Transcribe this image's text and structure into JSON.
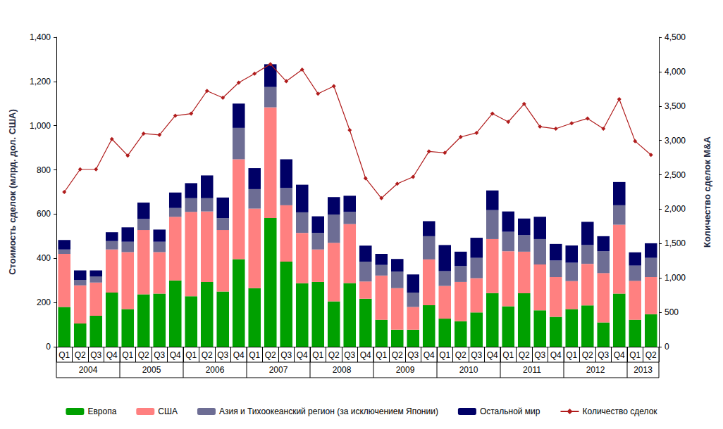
{
  "chart_data": {
    "type": "bar",
    "stacked": true,
    "grid": false,
    "legend": "bottom",
    "y_label": "Стоимость сделок (млрд. дол. США)",
    "y2_label": "Количество сделок M&A",
    "categories": [
      "Q1",
      "Q2",
      "Q3",
      "Q4",
      "Q1",
      "Q2",
      "Q3",
      "Q4",
      "Q1",
      "Q2",
      "Q3",
      "Q4",
      "Q1",
      "Q2",
      "Q3",
      "Q4",
      "Q1",
      "Q2",
      "Q3",
      "Q4",
      "Q1",
      "Q2",
      "Q3",
      "Q4",
      "Q1",
      "Q2",
      "Q3",
      "Q4",
      "Q1",
      "Q2",
      "Q3",
      "Q4",
      "Q1",
      "Q2",
      "Q3",
      "Q4",
      "Q1",
      "Q2"
    ],
    "years": [
      "2004",
      "2004",
      "2004",
      "2004",
      "2005",
      "2005",
      "2005",
      "2005",
      "2006",
      "2006",
      "2006",
      "2006",
      "2007",
      "2007",
      "2007",
      "2007",
      "2008",
      "2008",
      "2008",
      "2008",
      "2009",
      "2009",
      "2009",
      "2009",
      "2010",
      "2010",
      "2010",
      "2010",
      "2011",
      "2011",
      "2011",
      "2011",
      "2012",
      "2012",
      "2012",
      "2012",
      "2013",
      "2013"
    ],
    "ylim": [
      0,
      1400
    ],
    "yticks": [
      0,
      200,
      400,
      600,
      800,
      {
        "value": 1000,
        "label": "1,000"
      },
      {
        "value": 1200,
        "label": "1,200"
      },
      {
        "value": 1400,
        "label": "1,400"
      }
    ],
    "y2lim": [
      0,
      4500
    ],
    "y2ticks": [
      0,
      500,
      {
        "value": 1000,
        "label": "1,000"
      },
      {
        "value": 1500,
        "label": "1,500"
      },
      {
        "value": 2000,
        "label": "2,000"
      },
      {
        "value": 2500,
        "label": "2,500"
      },
      {
        "value": 3000,
        "label": "3,000"
      },
      {
        "value": 3500,
        "label": "3,500"
      },
      {
        "value": 4000,
        "label": "4,000"
      },
      {
        "value": 4500,
        "label": "4,500"
      }
    ],
    "series": [
      {
        "name": "Европа",
        "type": "bar",
        "color": "#00a000",
        "values": [
          180,
          105,
          140,
          245,
          170,
          237,
          240,
          300,
          228,
          293,
          250,
          396,
          265,
          582,
          385,
          287,
          293,
          205,
          288,
          217,
          122,
          77,
          77,
          188,
          127,
          115,
          155,
          243,
          183,
          242,
          165,
          135,
          170,
          187,
          110,
          240,
          122,
          147
        ]
      },
      {
        "name": "США",
        "type": "bar",
        "color": "#ff8080",
        "values": [
          240,
          173,
          150,
          195,
          258,
          291,
          188,
          288,
          382,
          319,
          278,
          452,
          360,
          501,
          255,
          228,
          147,
          265,
          267,
          78,
          200,
          188,
          103,
          207,
          148,
          178,
          155,
          244,
          249,
          188,
          207,
          180,
          127,
          188,
          223,
          312,
          176,
          168
        ]
      },
      {
        "name": "Азия и Тихоокеанский регион (за исключением Японии)",
        "type": "bar",
        "color": "#6d6d94",
        "values": [
          20,
          24,
          28,
          38,
          47,
          50,
          47,
          40,
          62,
          60,
          54,
          142,
          88,
          92,
          78,
          93,
          75,
          128,
          55,
          90,
          48,
          75,
          65,
          105,
          67,
          72,
          92,
          131,
          88,
          75,
          115,
          75,
          83,
          85,
          99,
          88,
          69,
          87
        ]
      },
      {
        "name": "Остальной мир",
        "type": "bar",
        "color": "#000066",
        "values": [
          43,
          43,
          27,
          40,
          65,
          74,
          55,
          70,
          68,
          103,
          93,
          110,
          95,
          103,
          130,
          125,
          75,
          79,
          73,
          72,
          50,
          57,
          82,
          68,
          118,
          65,
          91,
          89,
          92,
          75,
          101,
          75,
          78,
          105,
          68,
          105,
          60,
          66
        ]
      },
      {
        "name": "Количество сделок",
        "type": "line",
        "axis": "y2",
        "color": "#b01c1c",
        "marker": "diamond",
        "line_style": "solid",
        "values": [
          2250,
          2580,
          2580,
          3020,
          2780,
          3100,
          3080,
          3360,
          3390,
          3720,
          3620,
          3840,
          3970,
          4110,
          3860,
          4030,
          3680,
          3790,
          3150,
          2450,
          2160,
          2370,
          2470,
          2840,
          2820,
          3050,
          3110,
          3390,
          3270,
          3530,
          3200,
          3170,
          3250,
          3320,
          3170,
          3600,
          2990,
          2790
        ]
      }
    ]
  }
}
